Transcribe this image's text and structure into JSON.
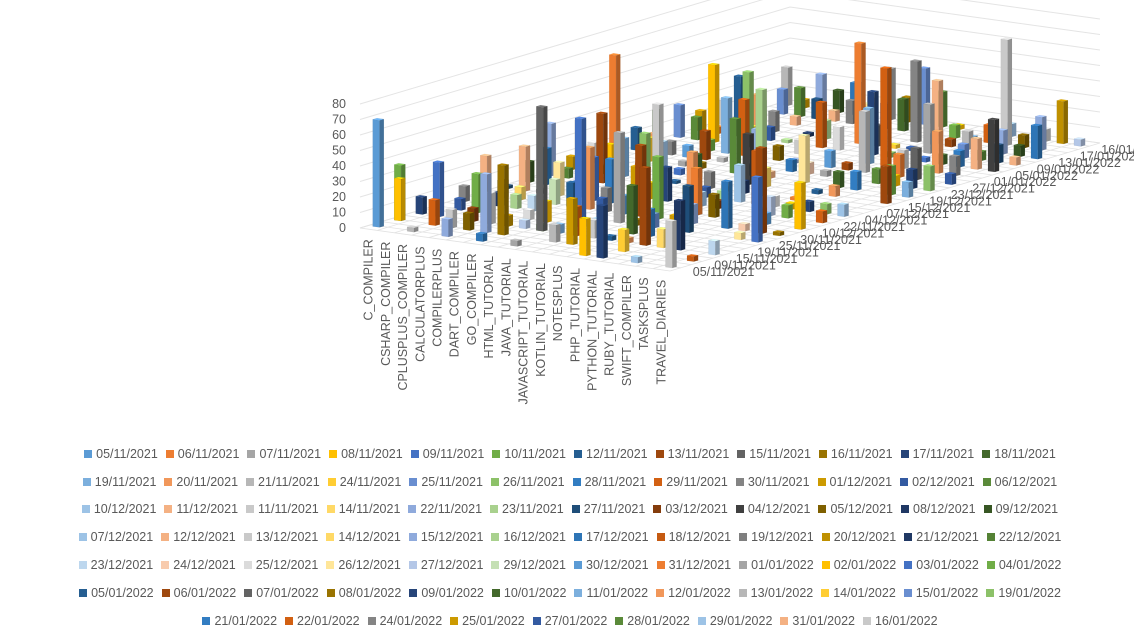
{
  "chart_data": {
    "type": "bar",
    "subtype": "3d-column",
    "title": "",
    "xlabel": "",
    "ylabel": "",
    "ylim": [
      0,
      80
    ],
    "yticks": [
      0,
      10,
      20,
      30,
      40,
      50,
      60,
      70,
      80
    ],
    "grid": true,
    "legend_position": "bottom",
    "categories": [
      "C_COMPILER",
      "CSHARP_COMPILER",
      "CPLUSPLUS_COMPILER",
      "CALCULATORPLUS",
      "COMPILERPLUS",
      "DART_COMPILER",
      "GO_COMPILER",
      "HTML_TUTORIAL",
      "JAVA_TUTORIAL",
      "JAVASCRIPT_TUTORIAL",
      "KOTLIN_TUTORIAL",
      "NOTESPLUS",
      "PHP_TUTORIAL",
      "PYTHON_TUTORIAL",
      "RUBY_TUTORIAL",
      "SWIFT_COMPILER",
      "TASKSPLUS",
      "TRAVEL_DIARIES"
    ],
    "depth_axis_labels": [
      "05/11/2021",
      "09/11/2021",
      "15/11/2021",
      "19/11/2021",
      "25/11/2021",
      "30/11/2021",
      "10/12/2021",
      "22/11/2021",
      "04/12/2021",
      "07/12/2021",
      "15/12/2021",
      "19/12/2021",
      "23/12/2021",
      "27/12/2021",
      "01/01/2022",
      "05/01/2022",
      "09/01/2022",
      "13/01/2022",
      "17/01/2022",
      "16/01/2022"
    ],
    "legend_rows": [
      [
        {
          "label": "05/11/2021",
          "color": "#5b9bd5"
        },
        {
          "label": "06/11/2021",
          "color": "#ed7d31"
        },
        {
          "label": "07/11/2021",
          "color": "#a5a5a5"
        },
        {
          "label": "08/11/2021",
          "color": "#ffc000"
        },
        {
          "label": "09/11/2021",
          "color": "#4472c4"
        },
        {
          "label": "10/11/2021",
          "color": "#70ad47"
        },
        {
          "label": "12/11/2021",
          "color": "#255e91"
        },
        {
          "label": "13/11/2021",
          "color": "#9e480e"
        },
        {
          "label": "15/11/2021",
          "color": "#636363"
        },
        {
          "label": "16/11/2021",
          "color": "#997300"
        },
        {
          "label": "17/11/2021",
          "color": "#264478"
        },
        {
          "label": "18/11/2021",
          "color": "#43682b"
        }
      ],
      [
        {
          "label": "19/11/2021",
          "color": "#7cafdd"
        },
        {
          "label": "20/11/2021",
          "color": "#f1975a"
        },
        {
          "label": "21/11/2021",
          "color": "#b7b7b7"
        },
        {
          "label": "24/11/2021",
          "color": "#ffcd33"
        },
        {
          "label": "25/11/2021",
          "color": "#698ed0"
        },
        {
          "label": "26/11/2021",
          "color": "#8cc168"
        },
        {
          "label": "28/11/2021",
          "color": "#327dc2"
        },
        {
          "label": "29/11/2021",
          "color": "#d26012"
        },
        {
          "label": "30/11/2021",
          "color": "#848484"
        },
        {
          "label": "01/12/2021",
          "color": "#cc9a00"
        },
        {
          "label": "02/12/2021",
          "color": "#335aa1"
        },
        {
          "label": "06/12/2021",
          "color": "#5a8a39"
        }
      ],
      [
        {
          "label": "10/12/2021",
          "color": "#9dc3e6"
        },
        {
          "label": "11/12/2021",
          "color": "#f4b183"
        },
        {
          "label": "11/11/2021",
          "color": "#c9c9c9"
        },
        {
          "label": "14/11/2021",
          "color": "#ffd966"
        },
        {
          "label": "22/11/2021",
          "color": "#8faadc"
        },
        {
          "label": "23/11/2021",
          "color": "#a9d18e"
        },
        {
          "label": "27/11/2021",
          "color": "#1f4e79"
        },
        {
          "label": "03/12/2021",
          "color": "#843c0c"
        },
        {
          "label": "04/12/2021",
          "color": "#404040"
        },
        {
          "label": "05/12/2021",
          "color": "#7f6000"
        },
        {
          "label": "08/12/2021",
          "color": "#203864"
        },
        {
          "label": "09/12/2021",
          "color": "#375623"
        }
      ],
      [
        {
          "label": "07/12/2021",
          "color": "#9dc3e6"
        },
        {
          "label": "12/12/2021",
          "color": "#f4b183"
        },
        {
          "label": "13/12/2021",
          "color": "#c9c9c9"
        },
        {
          "label": "14/12/2021",
          "color": "#ffd966"
        },
        {
          "label": "15/12/2021",
          "color": "#8faadc"
        },
        {
          "label": "16/12/2021",
          "color": "#a9d18e"
        },
        {
          "label": "17/12/2021",
          "color": "#2e75b6"
        },
        {
          "label": "18/12/2021",
          "color": "#c55a11"
        },
        {
          "label": "19/12/2021",
          "color": "#7f7f7f"
        },
        {
          "label": "20/12/2021",
          "color": "#bf9000"
        },
        {
          "label": "21/12/2021",
          "color": "#203864"
        },
        {
          "label": "22/12/2021",
          "color": "#548235"
        }
      ],
      [
        {
          "label": "23/12/2021",
          "color": "#bdd7ee"
        },
        {
          "label": "24/12/2021",
          "color": "#f8cbad"
        },
        {
          "label": "25/12/2021",
          "color": "#dbdbdb"
        },
        {
          "label": "26/12/2021",
          "color": "#ffe699"
        },
        {
          "label": "27/12/2021",
          "color": "#b4c7e7"
        },
        {
          "label": "29/12/2021",
          "color": "#c5e0b4"
        },
        {
          "label": "30/12/2021",
          "color": "#5b9bd5"
        },
        {
          "label": "31/12/2021",
          "color": "#ed7d31"
        },
        {
          "label": "01/01/2022",
          "color": "#a5a5a5"
        },
        {
          "label": "02/01/2022",
          "color": "#ffc000"
        },
        {
          "label": "03/01/2022",
          "color": "#4472c4"
        },
        {
          "label": "04/01/2022",
          "color": "#70ad47"
        }
      ],
      [
        {
          "label": "05/01/2022",
          "color": "#255e91"
        },
        {
          "label": "06/01/2022",
          "color": "#9e480e"
        },
        {
          "label": "07/01/2022",
          "color": "#636363"
        },
        {
          "label": "08/01/2022",
          "color": "#997300"
        },
        {
          "label": "09/01/2022",
          "color": "#264478"
        },
        {
          "label": "10/01/2022",
          "color": "#43682b"
        },
        {
          "label": "11/01/2022",
          "color": "#7cafdd"
        },
        {
          "label": "12/01/2022",
          "color": "#f1975a"
        },
        {
          "label": "13/01/2022",
          "color": "#b7b7b7"
        },
        {
          "label": "14/01/2022",
          "color": "#ffcd33"
        },
        {
          "label": "15/01/2022",
          "color": "#698ed0"
        },
        {
          "label": "19/01/2022",
          "color": "#8cc168"
        }
      ],
      [
        {
          "label": "21/01/2022",
          "color": "#327dc2"
        },
        {
          "label": "22/01/2022",
          "color": "#d26012"
        },
        {
          "label": "24/01/2022",
          "color": "#848484"
        },
        {
          "label": "25/01/2022",
          "color": "#cc9a00"
        },
        {
          "label": "27/01/2022",
          "color": "#335aa1"
        },
        {
          "label": "28/01/2022",
          "color": "#5a8a39"
        },
        {
          "label": "29/01/2022",
          "color": "#9dc3e6"
        },
        {
          "label": "31/01/2022",
          "color": "#f4b183"
        },
        {
          "label": "16/01/2022",
          "color": "#c9c9c9"
        }
      ]
    ],
    "highlighted_values": [
      {
        "category": "C_COMPILER",
        "date": "08/11/2021",
        "value": 27
      },
      {
        "category": "CSHARP_COMPILER",
        "date": "09/11/2021",
        "value": 35
      },
      {
        "category": "CPLUSPLUS_COMPILER",
        "date": "10/11/2021",
        "value": 25
      },
      {
        "category": "DART_COMPILER",
        "date": "09/11/2021",
        "value": 28
      },
      {
        "category": "GO_COMPILER",
        "date": "16/11/2021",
        "value": 45
      },
      {
        "category": "HTML_TUTORIAL",
        "date": "15/11/2021",
        "value": 80
      },
      {
        "category": "JAVA_TUTORIAL",
        "date": "09/11/2021",
        "value": 70
      },
      {
        "category": "NOTESPLUS",
        "date": "06/11/2021",
        "value": 30
      },
      {
        "category": "KOTLIN_TUTORIAL",
        "date": "10/11/2021",
        "value": 40
      },
      {
        "category": "PYTHON_TUTORIAL",
        "date": "13/11/2021",
        "value": 50
      },
      {
        "category": "TASKSPLUS",
        "date": "13/11/2021",
        "value": 55
      },
      {
        "category": "TRAVEL_DIARIES",
        "date": "08/11/2021",
        "value": 30
      }
    ]
  }
}
